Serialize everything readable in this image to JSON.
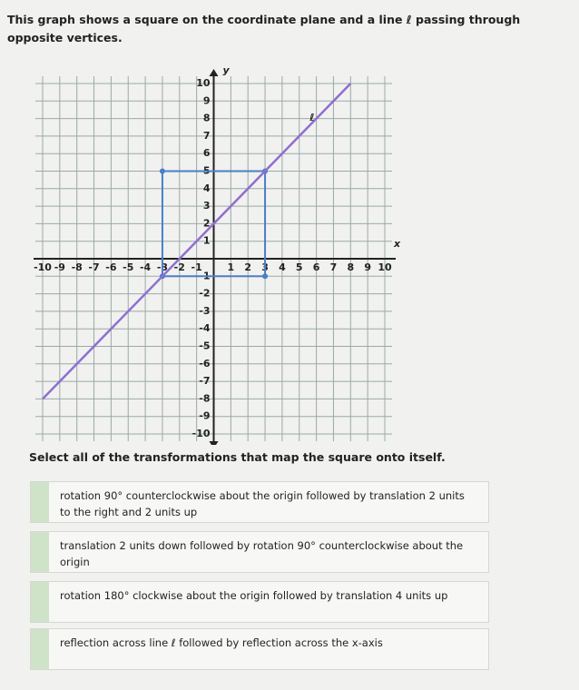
{
  "question": "This graph shows a square on the coordinate plane and a line ℓ passing through opposite vertices.",
  "graph": {
    "xlim": [
      -10,
      10
    ],
    "ylim": [
      -10,
      10
    ],
    "xticks": [
      -10,
      -9,
      -8,
      -7,
      -6,
      -5,
      -4,
      -3,
      -2,
      -1,
      1,
      2,
      3,
      4,
      5,
      6,
      7,
      8,
      9,
      10
    ],
    "yticks": [
      -10,
      -9,
      -8,
      -7,
      -6,
      -5,
      -4,
      -3,
      -2,
      -1,
      1,
      2,
      3,
      4,
      5,
      6,
      7,
      8,
      9,
      10
    ],
    "x_label": "x",
    "y_label": "y",
    "line_label": "ℓ",
    "square": [
      [
        -3,
        -1
      ],
      [
        3,
        -1
      ],
      [
        3,
        5
      ],
      [
        -3,
        5
      ]
    ],
    "square_color": "#4a7fc8",
    "line": [
      [
        -10,
        -8
      ],
      [
        8,
        10
      ]
    ],
    "line_color": "#8e6fd0"
  },
  "instruction": "Select all of the transformations that map the square onto itself.",
  "options": [
    "rotation 90° counterclockwise about the origin followed by translation 2 units to the right and 2 units up",
    "translation 2 units down followed by rotation 90° counterclockwise about the origin",
    "rotation 180° clockwise about the origin followed by translation 4 units up",
    "reflection across line ℓ followed by reflection across the x-axis"
  ]
}
